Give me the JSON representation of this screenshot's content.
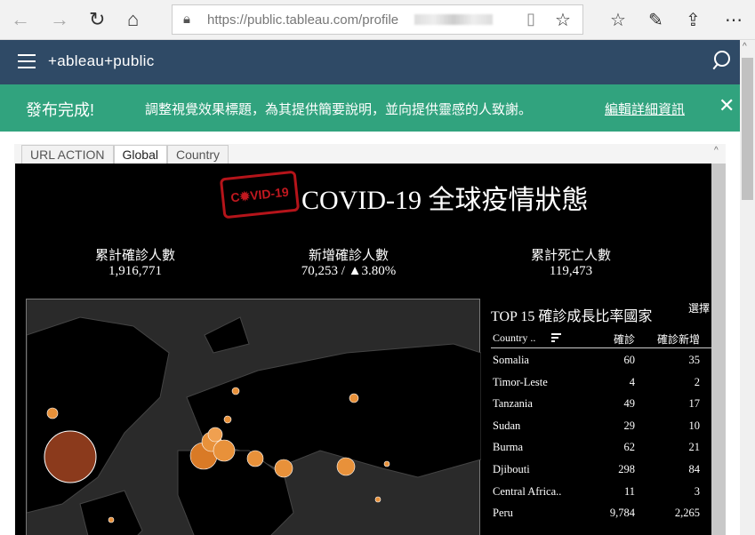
{
  "browser": {
    "url_host": "https://public.tableau.com/",
    "url_path": "profile",
    "icons": [
      "back-icon",
      "forward-icon",
      "refresh-icon",
      "home-icon",
      "lock-icon",
      "reading-view-icon",
      "favorite-star-icon",
      "favorites-list-icon",
      "pen-icon",
      "share-icon",
      "more-icon"
    ]
  },
  "header": {
    "logo": "+ableau+public"
  },
  "banner": {
    "title": "發布完成!",
    "message": "調整視覺效果標題，為其提供簡要說明，並向提供靈感的人致謝。",
    "link": "編輯詳細資訊"
  },
  "tabs": [
    {
      "label": "URL ACTION"
    },
    {
      "label": "Global",
      "active": true
    },
    {
      "label": "Country"
    }
  ],
  "viz": {
    "stamp": "C#VID-19",
    "title": "COVID-19 全球疫情狀態",
    "kpis": [
      {
        "label": "累計確診人數",
        "value": "1,916,771"
      },
      {
        "label": "新增確診人數",
        "value": "70,253 / ▲3.80%"
      },
      {
        "label": "累計死亡人數",
        "value": "119,473"
      }
    ],
    "table": {
      "title": "TOP 15 確診成長比率國家",
      "select_label": "選擇",
      "columns": [
        "Country ..",
        "確診",
        "確診新增"
      ],
      "rows": [
        [
          "Somalia",
          "60",
          "35"
        ],
        [
          "Timor-Leste",
          "4",
          "2"
        ],
        [
          "Tanzania",
          "49",
          "17"
        ],
        [
          "Sudan",
          "29",
          "10"
        ],
        [
          "Burma",
          "62",
          "21"
        ],
        [
          "Djibouti",
          "298",
          "84"
        ],
        [
          "Central Africa..",
          "11",
          "3"
        ],
        [
          "Peru",
          "9,784",
          "2,265"
        ]
      ]
    }
  },
  "colors": {
    "header": "#2f4a66",
    "banner": "#31a37e",
    "bubble_large": "#8b3a1c",
    "bubble": "#e8913a"
  }
}
